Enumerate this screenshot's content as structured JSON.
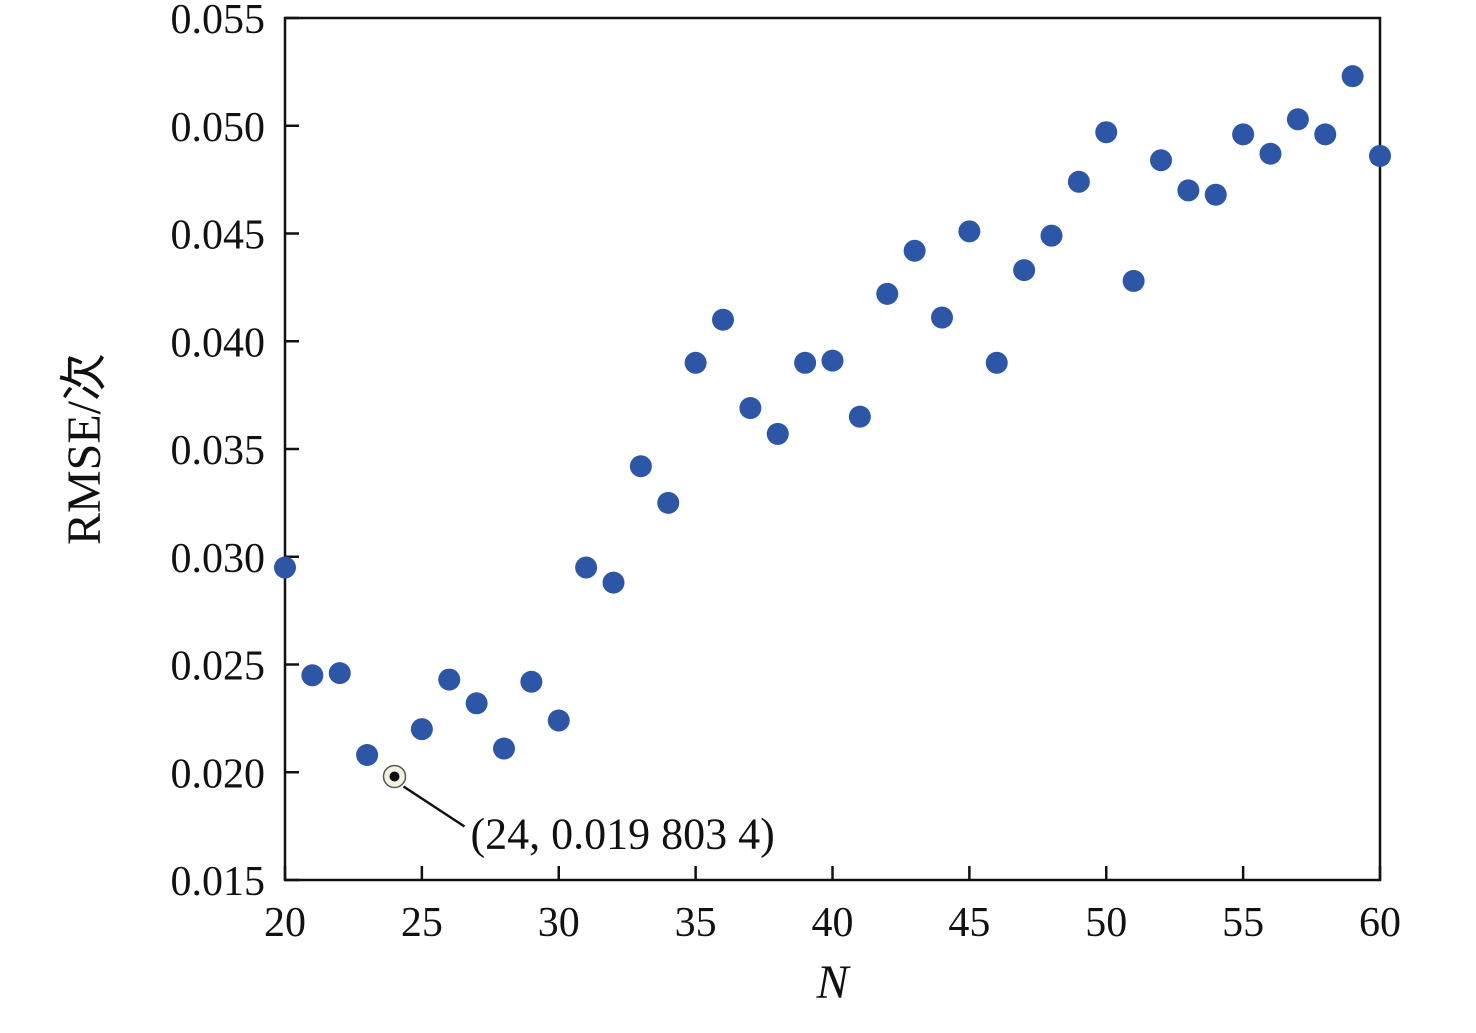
{
  "chart_data": {
    "type": "scatter",
    "title": "",
    "xlabel": "N",
    "ylabel": "RMSE/次",
    "xlim": [
      20,
      60
    ],
    "ylim": [
      0.015,
      0.055
    ],
    "xticks": [
      20,
      25,
      30,
      35,
      40,
      45,
      50,
      55,
      60
    ],
    "yticks": [
      0.015,
      0.02,
      0.025,
      0.03,
      0.035,
      0.04,
      0.045,
      0.05,
      0.055
    ],
    "ytick_labels": [
      "0.015",
      "0.020",
      "0.025",
      "0.030",
      "0.035",
      "0.040",
      "0.045",
      "0.050",
      "0.055"
    ],
    "grid": false,
    "legend_position": "none",
    "marker_color": "#2d56a6",
    "frame_color": "#111111",
    "series": [
      {
        "name": "RMSE",
        "x": [
          20,
          21,
          22,
          23,
          24,
          25,
          26,
          27,
          28,
          29,
          30,
          31,
          32,
          33,
          34,
          35,
          36,
          37,
          38,
          39,
          40,
          41,
          42,
          43,
          44,
          45,
          46,
          47,
          48,
          49,
          50,
          51,
          52,
          53,
          54,
          55,
          56,
          57,
          58,
          59,
          60
        ],
        "y": [
          0.0295,
          0.0245,
          0.0246,
          0.0208,
          0.0198034,
          0.022,
          0.0243,
          0.0232,
          0.0211,
          0.0242,
          0.0224,
          0.0295,
          0.0288,
          0.0342,
          0.0325,
          0.039,
          0.041,
          0.0369,
          0.0357,
          0.039,
          0.0391,
          0.0365,
          0.0422,
          0.0442,
          0.0411,
          0.0451,
          0.039,
          0.0433,
          0.0449,
          0.0474,
          0.0497,
          0.0428,
          0.0484,
          0.047,
          0.0468,
          0.0496,
          0.0487,
          0.0503,
          0.0496,
          0.0523,
          0.0486
        ]
      }
    ],
    "annotation": {
      "label": "(24, 0.019 803 4)",
      "x": 24,
      "y": 0.0198034
    }
  }
}
